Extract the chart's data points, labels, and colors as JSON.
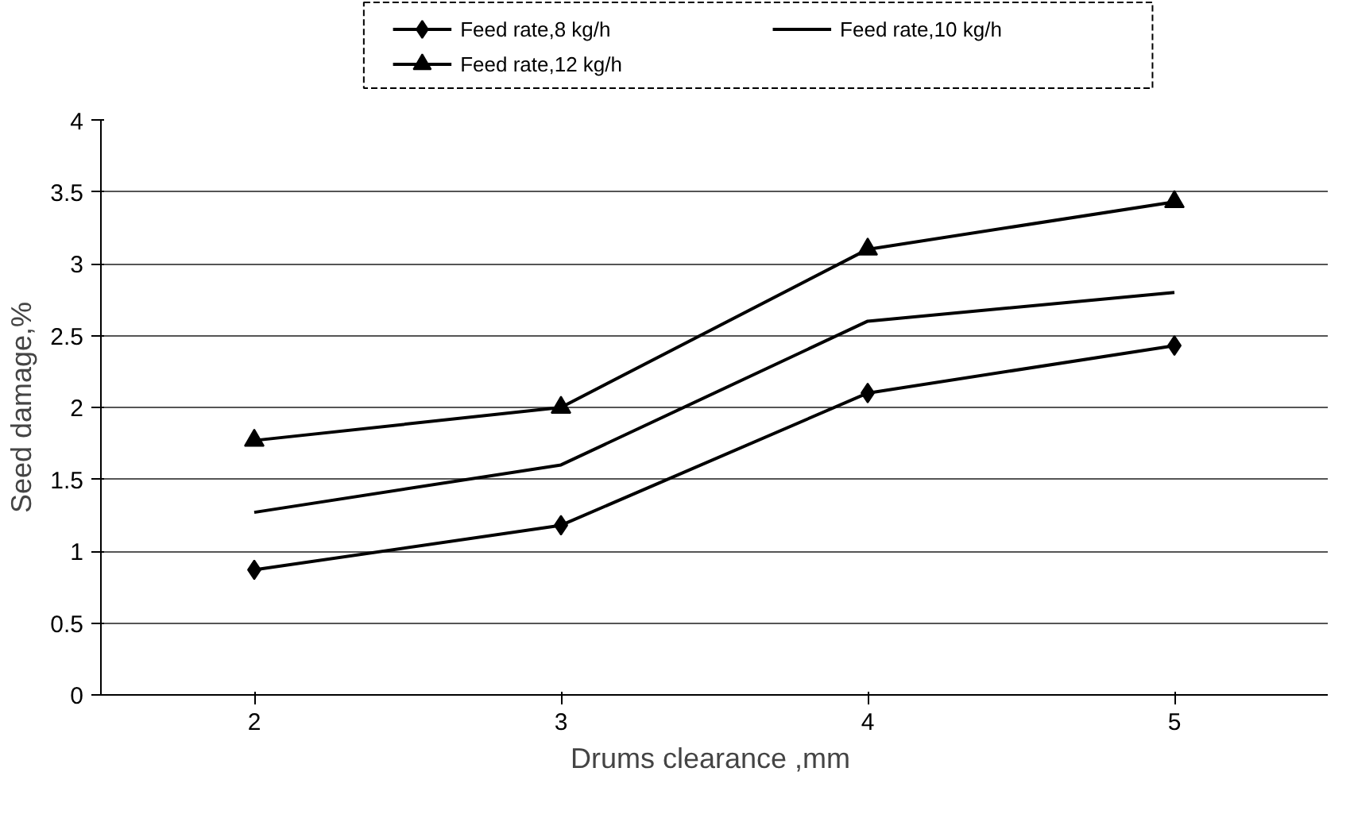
{
  "chart_data": {
    "type": "line",
    "xlabel": "Drums clearance  ,mm",
    "ylabel": "Seed damage,%",
    "x": [
      2,
      3,
      4,
      5
    ],
    "series": [
      {
        "name": "Feed rate,8 kg/h",
        "color": "#000000",
        "marker": "diamond",
        "values": [
          0.87,
          1.18,
          2.1,
          2.43
        ]
      },
      {
        "name": "Feed rate,10 kg/h",
        "color": "#000000",
        "marker": "none",
        "values": [
          1.27,
          1.6,
          2.6,
          2.8
        ]
      },
      {
        "name": "Feed rate,12 kg/h",
        "color": "#000000",
        "marker": "triangle",
        "values": [
          1.77,
          2.0,
          3.1,
          3.43
        ]
      }
    ],
    "xlim": [
      1.5,
      5.5
    ],
    "xticks": [
      2,
      3,
      4,
      5
    ],
    "ylim": [
      0,
      4
    ],
    "yticks": [
      0,
      0.5,
      1,
      1.5,
      2,
      2.5,
      3,
      3.5,
      4
    ],
    "grid": "y",
    "legend": "top",
    "line_style": "solid"
  }
}
